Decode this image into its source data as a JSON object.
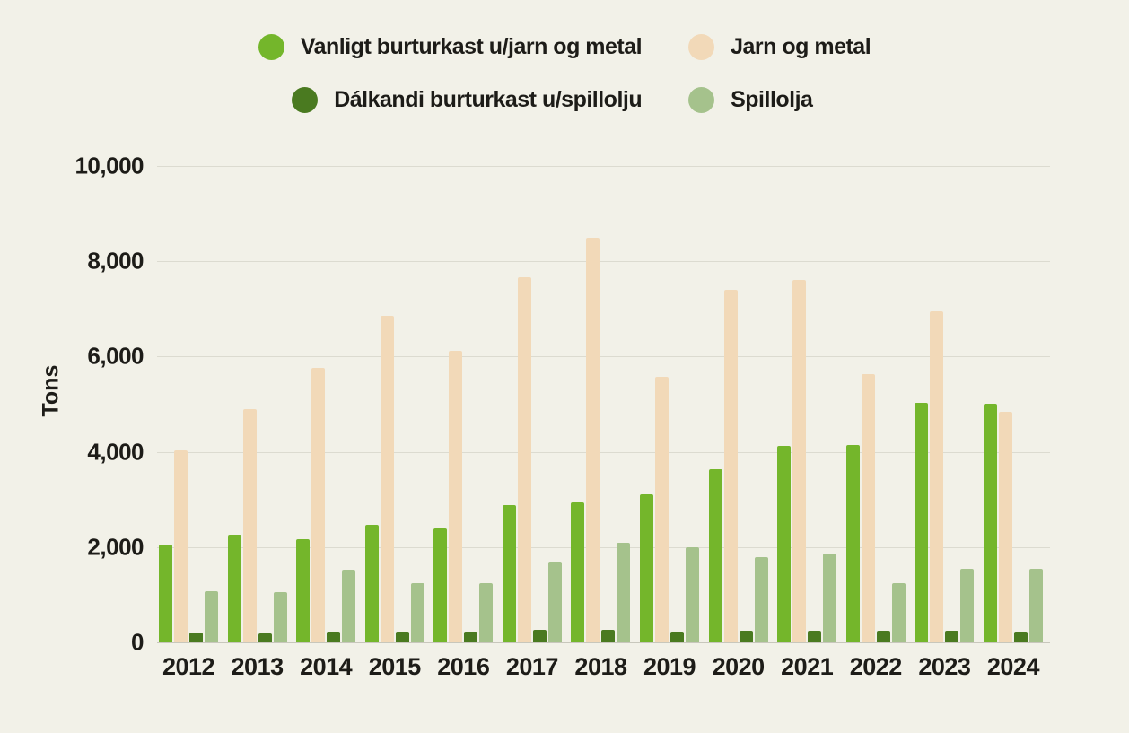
{
  "chart_data": {
    "type": "bar",
    "title": "",
    "ylabel": "Tons",
    "xlabel": "",
    "grid": true,
    "legend_position": "top",
    "ylim": [
      0,
      10000
    ],
    "ytick_labels": [
      "10,000",
      "8,000",
      "6,000",
      "4,000",
      "2,000",
      "0"
    ],
    "ytick_values": [
      10000,
      8000,
      6000,
      4000,
      2000,
      0
    ],
    "categories": [
      "2012",
      "2013",
      "2014",
      "2015",
      "2016",
      "2017",
      "2018",
      "2019",
      "2020",
      "2021",
      "2022",
      "2023",
      "2024"
    ],
    "series": [
      {
        "name": "Vanligt burturkast u/jarn og metal",
        "color": "#74b62b",
        "values": [
          2060,
          2260,
          2160,
          2460,
          2390,
          2880,
          2940,
          3100,
          3630,
          4120,
          4150,
          5020,
          5010
        ]
      },
      {
        "name": "Jarn og metal",
        "color": "#f2d9b8",
        "values": [
          4030,
          4900,
          5760,
          6850,
          6120,
          7660,
          8500,
          5570,
          7400,
          7600,
          5630,
          6950,
          4840
        ]
      },
      {
        "name": "Dálkandi burturkast u/spillolju",
        "color": "#4a7a20",
        "values": [
          200,
          190,
          220,
          220,
          230,
          270,
          270,
          220,
          240,
          250,
          240,
          250,
          230
        ]
      },
      {
        "name": "Spillolja",
        "color": "#a5c28c",
        "values": [
          1080,
          1060,
          1520,
          1240,
          1250,
          1700,
          2100,
          2000,
          1780,
          1860,
          1250,
          1550,
          1550
        ]
      }
    ]
  },
  "colors": {
    "background": "#f2f1e8",
    "text": "#1d1c18",
    "gridline": "#dcdbd0",
    "baseline": "#c8c7bc"
  }
}
